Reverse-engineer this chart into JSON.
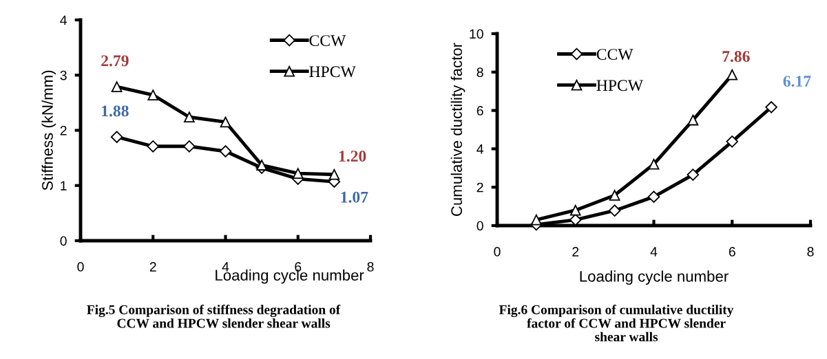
{
  "chart_data": [
    {
      "type": "line",
      "ylabel": "Stiffness (kN/mm)",
      "xlabel": "Loading cycle number",
      "x": [
        1,
        2,
        3,
        4,
        5,
        6,
        7
      ],
      "series": [
        {
          "name": "CCW",
          "color": "#000000",
          "marker": "diamond",
          "values": [
            1.88,
            1.71,
            1.71,
            1.62,
            1.32,
            1.12,
            1.07
          ],
          "value_labels": [
            "1.88",
            null,
            null,
            null,
            null,
            null,
            "1.07"
          ]
        },
        {
          "name": "HPCW",
          "color": "#000000",
          "marker": "triangle",
          "values": [
            2.79,
            2.64,
            2.24,
            2.15,
            1.37,
            1.22,
            1.2
          ],
          "value_labels": [
            "2.79",
            null,
            null,
            null,
            null,
            null,
            "1.20"
          ]
        }
      ],
      "xlim": [
        0,
        8
      ],
      "xticks": [
        0,
        2,
        4,
        6,
        8
      ],
      "ylim": [
        0,
        4
      ],
      "yticks": [
        0,
        1,
        2,
        3,
        4
      ],
      "grid": false,
      "legend": "top right",
      "annotations": [
        "Fig.5 Comparison of stiffness degradation of\n      CCW and HPCW slender shear walls"
      ]
    },
    {
      "type": "line",
      "ylabel": "Cumulative ductility factor",
      "xlabel": "Loading cycle number",
      "series": [
        {
          "name": "CCW",
          "color": "#000000",
          "marker": "diamond",
          "x": [
            1,
            2,
            3,
            4,
            5,
            6,
            7
          ],
          "values": [
            0.05,
            0.3,
            0.78,
            1.5,
            2.65,
            4.38,
            6.17
          ],
          "value_labels": [
            null,
            null,
            null,
            null,
            null,
            null,
            "6.17"
          ]
        },
        {
          "name": "HPCW",
          "color": "#000000",
          "marker": "triangle",
          "x": [
            1,
            2,
            3,
            4,
            5,
            6
          ],
          "values": [
            0.3,
            0.8,
            1.58,
            3.2,
            5.5,
            7.86
          ],
          "value_labels": [
            null,
            null,
            null,
            null,
            null,
            "7.86"
          ]
        }
      ],
      "xlim": [
        0,
        8
      ],
      "xticks": [
        0,
        2,
        4,
        6,
        8
      ],
      "ylim": [
        0,
        10
      ],
      "yticks": [
        0,
        2,
        4,
        6,
        8,
        10
      ],
      "grid": false,
      "legend": "top left",
      "annotations": [
        "Fig.6 Comparison of cumulative ductility\n      factor of CCW and HPCW slender\n      shear walls"
      ]
    }
  ]
}
